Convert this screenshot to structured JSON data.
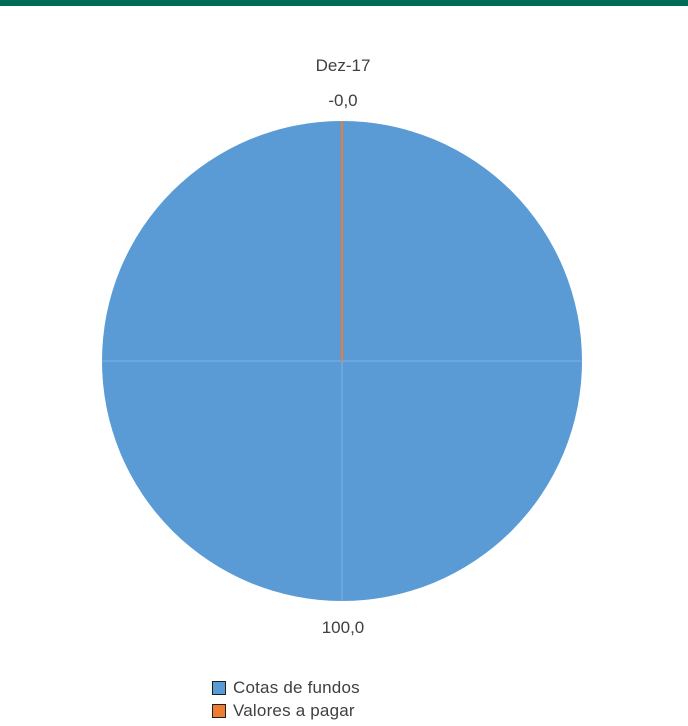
{
  "colors": {
    "top_bar": "#006b54"
  },
  "chart_data": {
    "type": "pie",
    "title": "Dez-17",
    "labels": [
      "Cotas de fundos",
      "Valores a pagar"
    ],
    "values": [
      100.0,
      -0.0
    ],
    "data_labels": [
      "100,0",
      "-0,0"
    ],
    "colors": [
      "#5b9bd5",
      "#ed7d31"
    ],
    "legend_position": "bottom"
  }
}
